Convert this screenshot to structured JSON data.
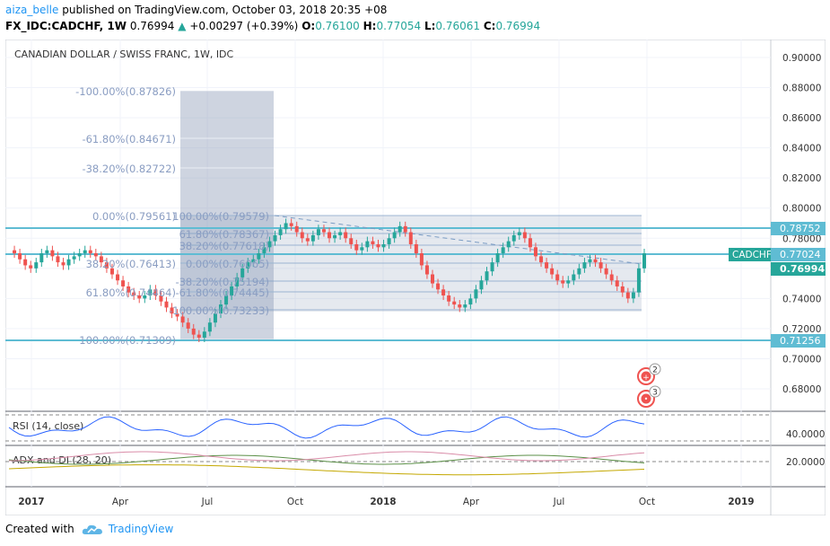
{
  "header": {
    "user": "aiza_belle",
    "published": "published on TradingView.com, October 03, 2018 20:35 +08",
    "symbol": "FX_IDC:CADCHF, 1W",
    "last": "0.76994",
    "change": "+0.00297 (+0.39%)",
    "o_label": "O:",
    "o": "0.76100",
    "h_label": "H:",
    "h": "0.77054",
    "l_label": "L:",
    "l": "0.76061",
    "c_label": "C:",
    "c": "0.76994"
  },
  "chart_title": "CANADIAN DOLLAR / SWISS FRANC, 1W, IDC",
  "price_axis": [
    "0.90000",
    "0.88000",
    "0.86000",
    "0.84000",
    "0.82000",
    "0.80000",
    "0.78000",
    "0.76000",
    "0.74000",
    "0.72000",
    "0.70000",
    "0.68000"
  ],
  "price_tags": {
    "level_upper": "0.78752",
    "symbol_tag": "CADCHF",
    "symbol_value": "0.77024",
    "last_value": "0.76994",
    "level_lower": "0.71256"
  },
  "fib_left": [
    "-100.00%(0.87826)",
    "-61.80%(0.84671)",
    "-38.20%(0.82722)",
    "0.00%(0.79561)",
    "38.20%(0.76413)",
    "61.80%(0.74464)",
    "100.00%(0.71309)"
  ],
  "fib_right": [
    "100.00%(0.79579)",
    "61.80%(0.78367)",
    "38.20%(0.77618)",
    "0.00%(0.76065)",
    "-38.20%(0.75194)",
    "-61.80%(0.74445)",
    "-100.00%(0.73233)"
  ],
  "markers": [
    "2",
    "3"
  ],
  "rsi": {
    "label": "RSI (14, close)",
    "value": "40.0000"
  },
  "adx": {
    "label": "ADX and DI (28, 20)",
    "value": "20.0000"
  },
  "time_axis": [
    "2017",
    "Apr",
    "Jul",
    "Oct",
    "2018",
    "Apr",
    "Jul",
    "Oct",
    "2019"
  ],
  "colors": {
    "up": "#26a69a",
    "down": "#ef5350",
    "level": "#5fbcd3",
    "fib": "#7b9cc4"
  },
  "footer": {
    "created": "Created with",
    "brand": "TradingView"
  }
}
